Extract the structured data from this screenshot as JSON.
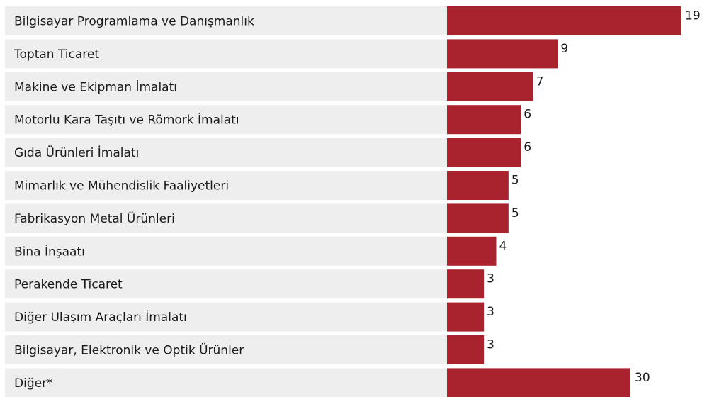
{
  "chart_data": {
    "type": "bar",
    "orientation": "horizontal",
    "categories": [
      "Bilgisayar Programlama ve Danışmanlık",
      "Toptan Ticaret",
      "Makine ve Ekipman İmalatı",
      "Motorlu Kara Taşıtı ve Römork İmalatı",
      "Gıda Ürünleri İmalatı",
      "Mimarlık ve Mühendislik Faaliyetleri",
      "Fabrikasyon Metal Ürünleri",
      "Bina İnşaatı",
      "Perakende Ticaret",
      "Diğer Ulaşım Araçları İmalatı",
      "Bilgisayar, Elektronik ve Optik Ürünler",
      "Diğer*"
    ],
    "values": [
      19,
      9,
      7,
      6,
      6,
      5,
      5,
      4,
      3,
      3,
      3,
      30
    ],
    "value_labels": [
      "19",
      "9",
      "7",
      "6",
      "6",
      "5",
      "5",
      "4",
      "3",
      "3",
      "3",
      "30"
    ],
    "title": "",
    "xlabel": "",
    "ylabel": "",
    "grid": false,
    "legend": "none",
    "colors": {
      "bar": "#A8232D",
      "row_background": "#EEEEEE",
      "label_text": "#1A1A1A"
    }
  }
}
